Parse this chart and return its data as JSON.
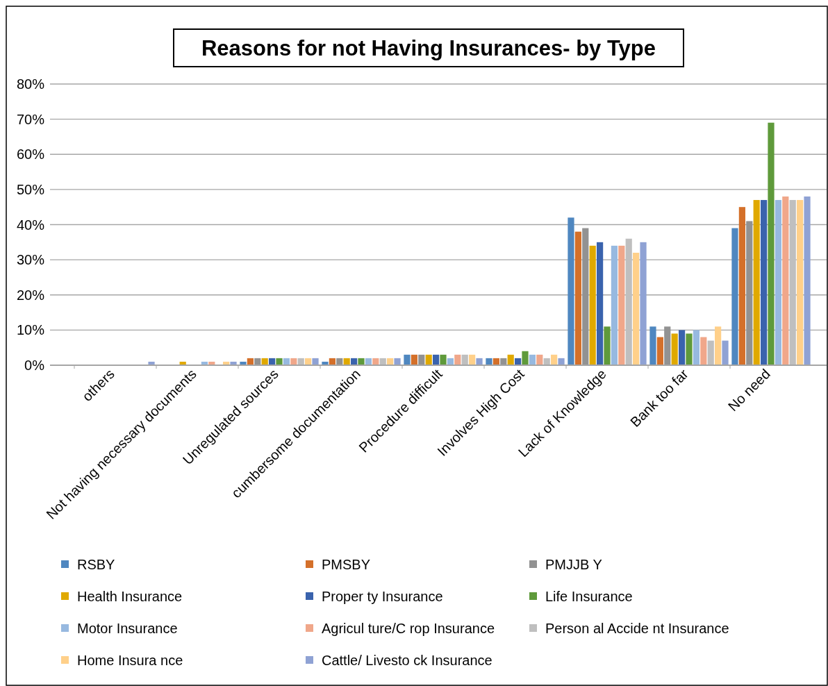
{
  "chart_data": {
    "type": "bar",
    "title": "Reasons for not Having Insurances- by Type",
    "categories": [
      "others",
      "Not having necessary documents",
      "Unregulated sources",
      "cumbersome documentation",
      "Procedure difficult",
      "Involves High Cost",
      "Lack of Knowledge",
      "Bank too far",
      "No need"
    ],
    "series": [
      {
        "name": "RSBY",
        "color": "#4f87c0",
        "values": [
          0,
          0,
          1,
          1,
          3,
          2,
          42,
          11,
          39
        ]
      },
      {
        "name": "PMSBY",
        "color": "#d4702a",
        "values": [
          0,
          0,
          2,
          2,
          3,
          2,
          38,
          8,
          45
        ]
      },
      {
        "name": "PMJJB Y",
        "color": "#929292",
        "values": [
          0,
          0,
          2,
          2,
          3,
          2,
          39,
          11,
          41
        ]
      },
      {
        "name": "Health Insurance",
        "color": "#e0a900",
        "values": [
          0,
          1,
          2,
          2,
          3,
          3,
          34,
          9,
          47
        ]
      },
      {
        "name": "Proper ty Insurance",
        "color": "#3a63ad",
        "values": [
          0,
          0,
          2,
          2,
          3,
          2,
          35,
          10,
          47
        ]
      },
      {
        "name": "Life Insurance",
        "color": "#5f9a3b",
        "values": [
          0,
          0,
          2,
          2,
          3,
          4,
          11,
          9,
          69
        ]
      },
      {
        "name": "Motor Insurance",
        "color": "#97b9e0",
        "values": [
          0,
          1,
          2,
          2,
          2,
          3,
          34,
          10,
          47
        ]
      },
      {
        "name": "Agricul ture/C rop Insurance",
        "color": "#f0a78a",
        "values": [
          0,
          1,
          2,
          2,
          3,
          3,
          34,
          8,
          48
        ]
      },
      {
        "name": "Person al Accide nt Insurance",
        "color": "#bfbfbf",
        "values": [
          0,
          0,
          2,
          2,
          3,
          2,
          36,
          7,
          47
        ]
      },
      {
        "name": "Home Insura nce",
        "color": "#ffd08a",
        "values": [
          0,
          1,
          2,
          2,
          3,
          3,
          32,
          11,
          47
        ]
      },
      {
        "name": "Cattle/ Livesto ck Insurance",
        "color": "#8fa2d4",
        "values": [
          1,
          1,
          2,
          2,
          2,
          2,
          35,
          7,
          48
        ]
      }
    ],
    "ylim": [
      0,
      80
    ],
    "yticks": [
      {
        "value": 0,
        "label": "0%"
      },
      {
        "value": 10,
        "label": "10%"
      },
      {
        "value": 20,
        "label": "20%"
      },
      {
        "value": 30,
        "label": "30%"
      },
      {
        "value": 40,
        "label": "40%"
      },
      {
        "value": 50,
        "label": "50%"
      },
      {
        "value": 60,
        "label": "60%"
      },
      {
        "value": 70,
        "label": "70%"
      },
      {
        "value": 80,
        "label": "80%"
      }
    ],
    "grid": "y",
    "legend": "bottom"
  }
}
